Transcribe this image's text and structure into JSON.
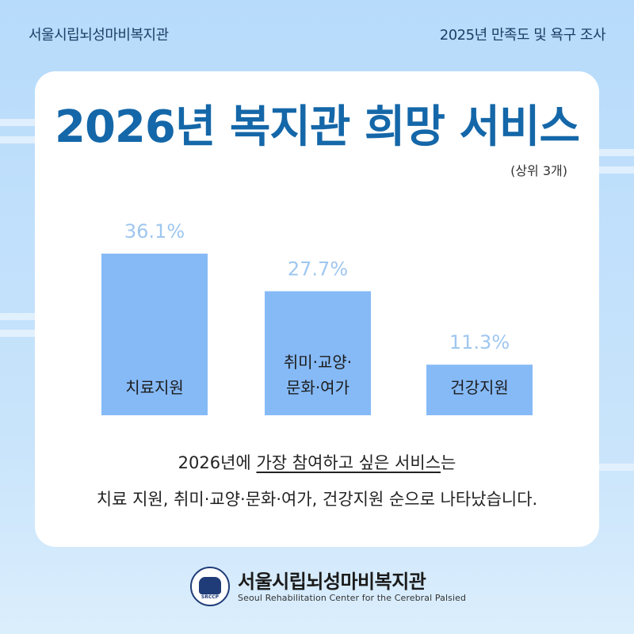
{
  "header": {
    "org_left": "서울시립뇌성마비복지관",
    "survey_right": "2025년 만족도 및 욕구 조사"
  },
  "card": {
    "title": "2026년 복지관 희망 서비스",
    "subtitle": "(상위 3개)"
  },
  "chart_data": {
    "type": "bar",
    "categories": [
      [
        "치료지원"
      ],
      [
        "취미·교양·",
        "문화·여가"
      ],
      [
        "건강지원"
      ]
    ],
    "values": [
      36.1,
      27.7,
      11.3
    ],
    "value_labels": [
      "36.1%",
      "27.7%",
      "11.3%"
    ],
    "colors": {
      "bar": "#86baf7",
      "value_label": "#9fc7ef",
      "category_label": "#1c1c1c"
    },
    "ylim": [
      0,
      40
    ],
    "grid": false,
    "legend": "none"
  },
  "description": {
    "line1_prefix": "2026년에 ",
    "line1_underlined": "가장 참여하고 싶은 서비스",
    "line1_suffix": "는",
    "line2": "치료 지원, 취미·교양·문화·여가, 건강지원 순으로 나타났습니다."
  },
  "footer": {
    "org_name": "서울시립뇌성마비복지관",
    "org_en": "Seoul Rehabilitation Center for the Cerebral Palsied",
    "logo_text": "SRCCP"
  }
}
